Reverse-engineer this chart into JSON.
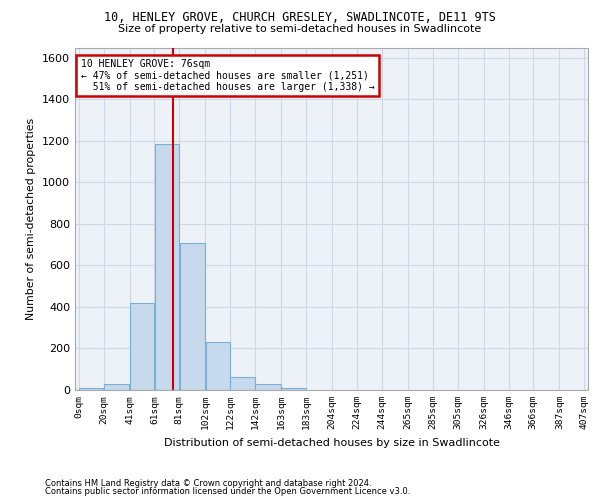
{
  "title_line1": "10, HENLEY GROVE, CHURCH GRESLEY, SWADLINCOTE, DE11 9TS",
  "title_line2": "Size of property relative to semi-detached houses in Swadlincote",
  "xlabel": "Distribution of semi-detached houses by size in Swadlincote",
  "ylabel": "Number of semi-detached properties",
  "footer_line1": "Contains HM Land Registry data © Crown copyright and database right 2024.",
  "footer_line2": "Contains public sector information licensed under the Open Government Licence v3.0.",
  "bin_labels": [
    "0sqm",
    "20sqm",
    "41sqm",
    "61sqm",
    "81sqm",
    "102sqm",
    "122sqm",
    "142sqm",
    "163sqm",
    "183sqm",
    "204sqm",
    "224sqm",
    "244sqm",
    "265sqm",
    "285sqm",
    "305sqm",
    "326sqm",
    "346sqm",
    "366sqm",
    "387sqm",
    "407sqm"
  ],
  "bar_values": [
    10,
    28,
    420,
    1185,
    710,
    230,
    65,
    28,
    10,
    0,
    0,
    0,
    0,
    0,
    0,
    0,
    0,
    0,
    0,
    0
  ],
  "bar_color": "#c6d9ed",
  "bar_edge_color": "#7bafd4",
  "grid_color": "#d0d8e4",
  "bg_color": "#edf2f8",
  "vline_color": "#cc0000",
  "annotation_box_edgecolor": "#cc0000",
  "ylim": [
    0,
    1650
  ],
  "bin_edges": [
    0,
    20,
    41,
    61,
    81,
    102,
    122,
    142,
    163,
    183,
    204,
    224,
    244,
    265,
    285,
    305,
    326,
    346,
    366,
    387,
    407
  ],
  "vline_sqm": 76,
  "annotation_line1": "10 HENLEY GROVE: 76sqm",
  "annotation_line2": "← 47% of semi-detached houses are smaller (1,251)",
  "annotation_line3": "  51% of semi-detached houses are larger (1,338) →"
}
